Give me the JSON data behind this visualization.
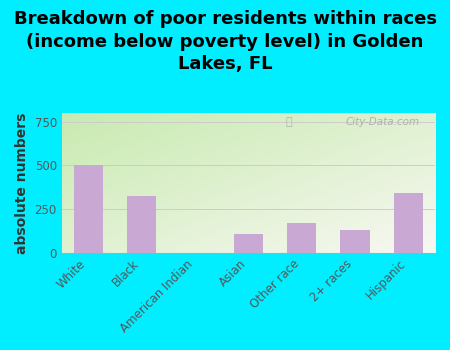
{
  "title": "Breakdown of poor residents within races\n(income below poverty level) in Golden\nLakes, FL",
  "categories": [
    "White",
    "Black",
    "American Indian",
    "Asian",
    "Other race",
    "2+ races",
    "Hispanic"
  ],
  "values": [
    505,
    325,
    0,
    105,
    170,
    130,
    340
  ],
  "bar_color": "#c9a8d4",
  "ylabel": "absolute numbers",
  "ylim": [
    0,
    800
  ],
  "yticks": [
    0,
    250,
    500,
    750
  ],
  "background_outer": "#00eeff",
  "background_plot_top_left": "#c8eab0",
  "background_plot_bottom_right": "#f8f8f2",
  "watermark": "City-Data.com",
  "title_fontsize": 13,
  "ylabel_fontsize": 10,
  "tick_fontsize": 8.5
}
